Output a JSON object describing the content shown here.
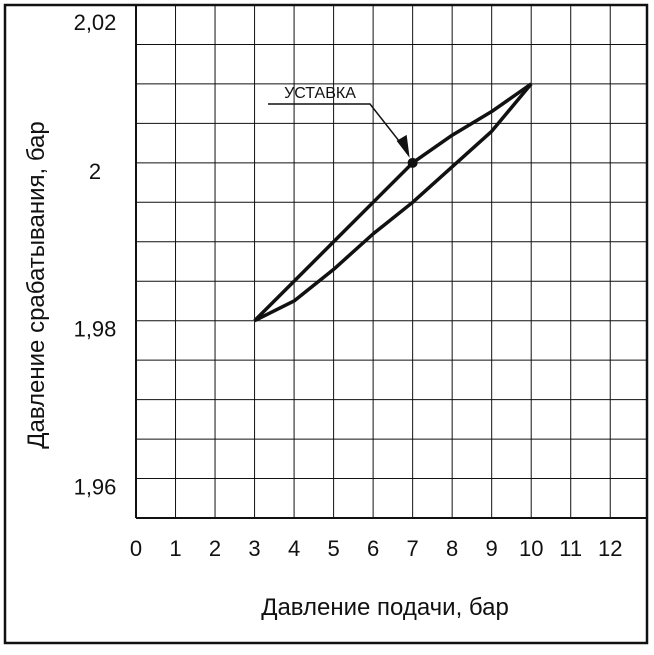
{
  "chart_data": {
    "type": "line",
    "x_label": "Давление подачи, бар",
    "y_label": "Давление срабатывания, бар",
    "x": [
      3,
      4,
      5,
      6,
      7,
      8,
      9,
      10
    ],
    "series": [
      {
        "color": "#111111",
        "values": [
          1.98,
          1.985,
          1.99,
          1.995,
          2,
          2.0035,
          2.0065,
          2.01
        ]
      },
      {
        "color": "#111111",
        "values": [
          1.98,
          1.9825,
          1.9865,
          1.991,
          1.995,
          1.9995,
          2.004,
          2.01
        ]
      }
    ],
    "xlim": [
      0,
      12.5
    ],
    "xticks": [
      0,
      1,
      2,
      3,
      4,
      5,
      6,
      7,
      8,
      9,
      10,
      11,
      12
    ],
    "ylim": [
      1.955,
      2.02
    ],
    "yticks": [
      {
        "value": 1.96,
        "label": "1,96"
      },
      {
        "value": 1.98,
        "label": "1,98"
      },
      2,
      {
        "value": 2.02,
        "label": "2,02"
      }
    ],
    "ygrid": [
      1.96,
      1.965,
      1.97,
      1.975,
      1.98,
      1.985,
      1.99,
      1.995,
      2,
      2.005,
      2.01,
      2.015
    ],
    "grid": true,
    "annotation": {
      "x": 7,
      "y": 2,
      "text": "УСТАВКА"
    }
  }
}
